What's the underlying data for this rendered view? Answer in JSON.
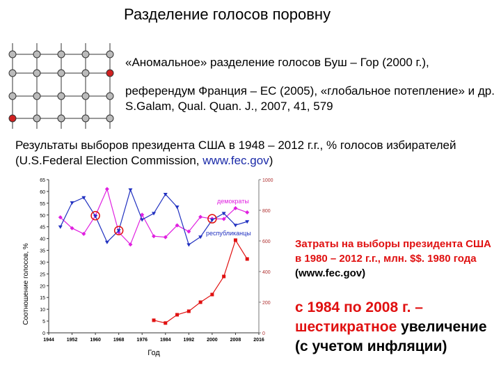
{
  "slide": {
    "title": "Разделение голосов поровну",
    "line1": "«Аномальное»  разделение голосов Буш – Гор (2000 г.),",
    "line2": "референдум Франция – ЕС (2005), «глобальное потепление» и др. S.Galam, Qual. Quan. J., 2007, 41, 579",
    "line3a": "Результаты выборов президента США в  1948 – 2012 г.г., % голосов избирателей (U.S.Federal Election Commission, ",
    "line3b": "www.fec.gov",
    "line3c": ")",
    "note1a": "Затраты на выборы президента США в 1980 – 2012 г.г., млн. $$. 1980 года",
    "note1b": "(www.fec.gov)",
    "note2a": "с 1984 по 2008 г. – шестикратное",
    "note2b": "увеличение (с учетом инфляции)"
  },
  "chart_data": {
    "type": "line",
    "xlabel": "Год",
    "ylabel": "Соотношение голосов, %",
    "x": [
      1948,
      1952,
      1956,
      1960,
      1964,
      1968,
      1972,
      1976,
      1980,
      1984,
      1988,
      1992,
      1996,
      2000,
      2004,
      2008,
      2012
    ],
    "xlim": [
      1944,
      2016
    ],
    "xticks": [
      1944,
      1952,
      1960,
      1968,
      1976,
      1984,
      1992,
      2000,
      2008,
      2016
    ],
    "ylim": [
      0,
      65
    ],
    "yticks": [
      0,
      5,
      10,
      15,
      20,
      25,
      30,
      35,
      40,
      45,
      50,
      55,
      60,
      65
    ],
    "y2lim": [
      0,
      1000
    ],
    "y2ticks": [
      0,
      200,
      400,
      600,
      800,
      1000
    ],
    "series": [
      {
        "name": "демократы",
        "color": "#e020e0",
        "values": [
          49,
          44.4,
          42,
          49.7,
          61,
          42.7,
          37.5,
          50.1,
          41,
          40.6,
          45.6,
          43,
          49.2,
          48.4,
          48.3,
          52.9,
          51.1
        ]
      },
      {
        "name": "республиканцы",
        "color": "#2030c0",
        "values": [
          45,
          55.2,
          57.4,
          49.5,
          38.5,
          43.4,
          60.7,
          48,
          50.7,
          58.8,
          53.4,
          37.4,
          40.7,
          47.9,
          50.7,
          45.7,
          47.2
        ]
      },
      {
        "color": "#e01010",
        "axis": "y2",
        "values": [
          null,
          null,
          null,
          null,
          null,
          null,
          null,
          null,
          82,
          64,
          118,
          141,
          200,
          250,
          368,
          605,
          482
        ]
      }
    ]
  }
}
